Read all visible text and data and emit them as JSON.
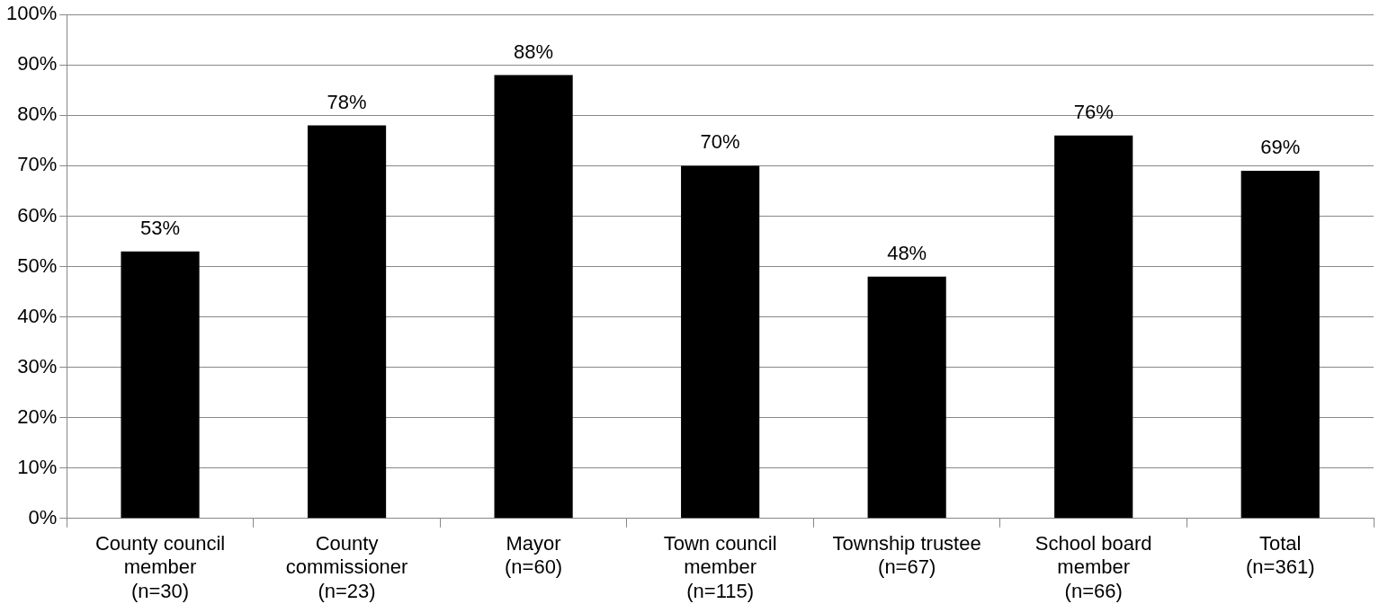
{
  "chart_data": {
    "type": "bar",
    "categories": [
      "County council\nmember\n(n=30)",
      "County\ncommissioner\n(n=23)",
      "Mayor\n(n=60)",
      "Town council\nmember\n(n=115)",
      "Township trustee\n(n=67)",
      "School board\nmember\n(n=66)",
      "Total\n(n=361)"
    ],
    "values": [
      53,
      78,
      88,
      70,
      48,
      76,
      69
    ],
    "value_labels": [
      "53%",
      "78%",
      "88%",
      "70%",
      "48%",
      "76%",
      "69%"
    ],
    "color": "#000000",
    "ylim": [
      0,
      100
    ],
    "yticks": [
      {
        "value": 0,
        "label": "0%"
      },
      {
        "value": 10,
        "label": "10%"
      },
      {
        "value": 20,
        "label": "20%"
      },
      {
        "value": 30,
        "label": "30%"
      },
      {
        "value": 40,
        "label": "40%"
      },
      {
        "value": 50,
        "label": "50%"
      },
      {
        "value": 60,
        "label": "60%"
      },
      {
        "value": 70,
        "label": "70%"
      },
      {
        "value": 80,
        "label": "80%"
      },
      {
        "value": 90,
        "label": "90%"
      },
      {
        "value": 100,
        "label": "100%"
      }
    ],
    "grid": "y",
    "legend": false
  }
}
